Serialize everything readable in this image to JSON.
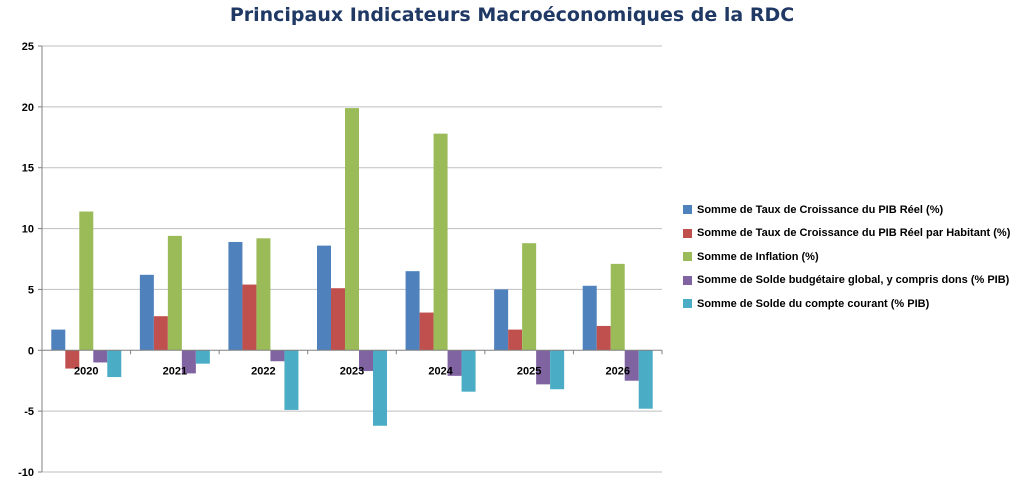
{
  "chart_data": {
    "type": "bar",
    "title": "Principaux Indicateurs Macroéconomiques de la RDC",
    "xlabel": "",
    "ylabel": "",
    "categories": [
      "2020",
      "2021",
      "2022",
      "2023",
      "2024",
      "2025",
      "2026"
    ],
    "ylim": [
      -10,
      25
    ],
    "yticks": [
      -10,
      -5,
      0,
      5,
      10,
      15,
      20,
      25
    ],
    "yticklabels": [
      "-10",
      "-5",
      "0",
      "5",
      "10",
      "15",
      "20",
      "25"
    ],
    "grid": true,
    "legend_position": "right",
    "series": [
      {
        "name": "Somme de Taux de Croissance  du PIB Réel (%)",
        "color": "#4f81bd",
        "values": [
          1.7,
          6.2,
          8.9,
          8.6,
          6.5,
          5.0,
          5.3
        ]
      },
      {
        "name": "Somme de Taux de Croissance  du PIB Réel par Habitant  (%)",
        "color": "#c0504d",
        "values": [
          -1.5,
          2.8,
          5.4,
          5.1,
          3.1,
          1.7,
          2.0
        ]
      },
      {
        "name": "Somme de Inflation (%)",
        "color": "#9bbb59",
        "values": [
          11.4,
          9.4,
          9.2,
          19.9,
          17.8,
          8.8,
          7.1
        ]
      },
      {
        "name": "Somme de Solde budgétaire global, y compris dons (% PIB)",
        "color": "#8064a2",
        "values": [
          -1.0,
          -1.9,
          -0.9,
          -1.7,
          -2.1,
          -2.8,
          -2.5
        ]
      },
      {
        "name": "Somme de Solde du compte courant  (% PIB)",
        "color": "#4bacc6",
        "values": [
          -2.2,
          -1.1,
          -4.9,
          -6.2,
          -3.4,
          -3.2,
          -4.8
        ]
      }
    ]
  }
}
